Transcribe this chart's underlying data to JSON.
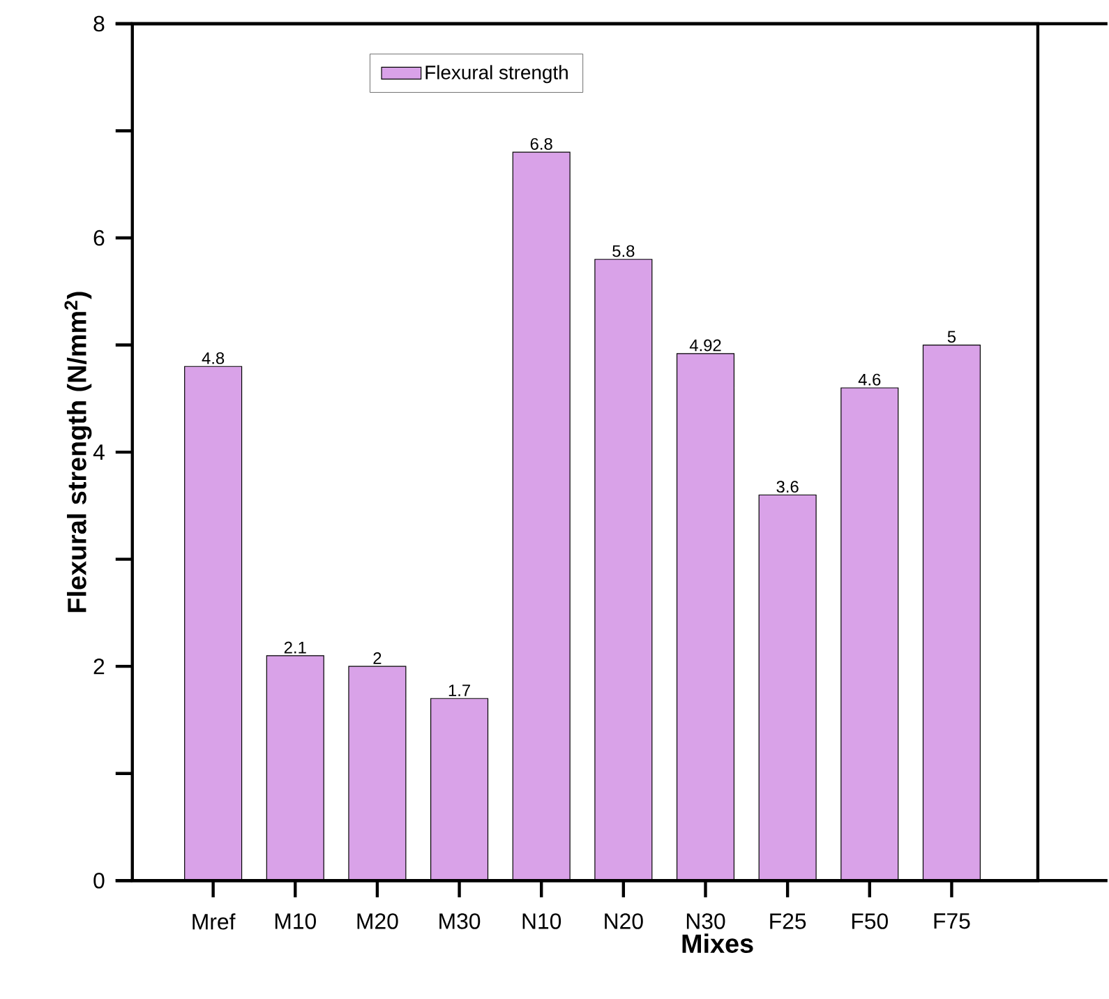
{
  "chart_data": {
    "type": "bar",
    "xlabel": "Mixes",
    "ylabel": "Flexural strength (N/mm$^{2}$)",
    "categories": [
      "Mref",
      "M10",
      "M20",
      "M30",
      "N10",
      "N20",
      "N30",
      "F25",
      "F50",
      "F75"
    ],
    "series": [
      {
        "name": "Flexural strength",
        "color": "#d9a2e8",
        "values": [
          4.8,
          2.1,
          2,
          1.7,
          6.8,
          5.8,
          4.92,
          3.6,
          4.6,
          5
        ]
      }
    ],
    "ylim": [
      0,
      8
    ],
    "yticks": [
      0,
      {
        "value": 1,
        "label": null
      },
      2,
      {
        "value": 3,
        "label": null
      },
      4,
      {
        "value": 5,
        "label": null
      },
      6,
      {
        "value": 7,
        "label": null
      },
      8
    ],
    "data_labels": true,
    "legend": "top",
    "grid": false
  }
}
